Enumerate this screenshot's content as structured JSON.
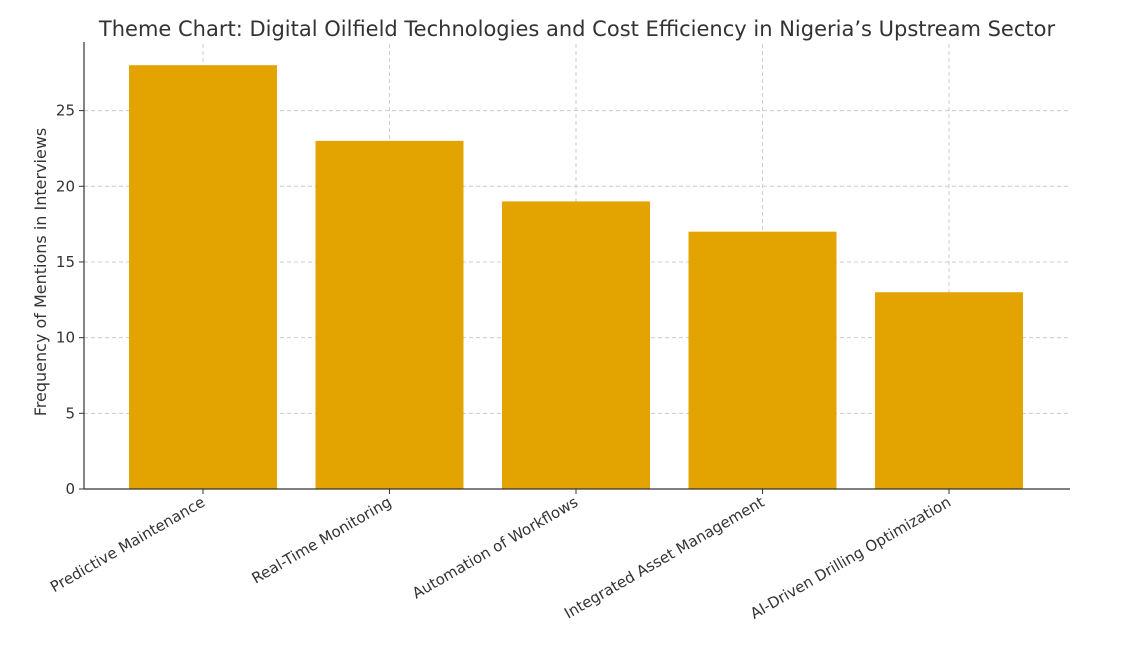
{
  "chart_data": {
    "type": "bar",
    "title": "Theme Chart: Digital Oilfield Technologies and Cost Efficiency in Nigeria’s Upstream Sector",
    "xlabel": "",
    "ylabel": "Frequency of Mentions in Interviews",
    "categories": [
      "Predictive Maintenance",
      "Real-Time Monitoring",
      "Automation of Workflows",
      "Integrated Asset Management",
      "AI-Driven Drilling Optimization"
    ],
    "values": [
      28,
      23,
      19,
      17,
      13
    ],
    "ylim": [
      0,
      29.4
    ],
    "yticks": [
      0,
      5,
      10,
      15,
      20,
      25
    ],
    "grid": true,
    "bar_color": "#E3A300"
  }
}
